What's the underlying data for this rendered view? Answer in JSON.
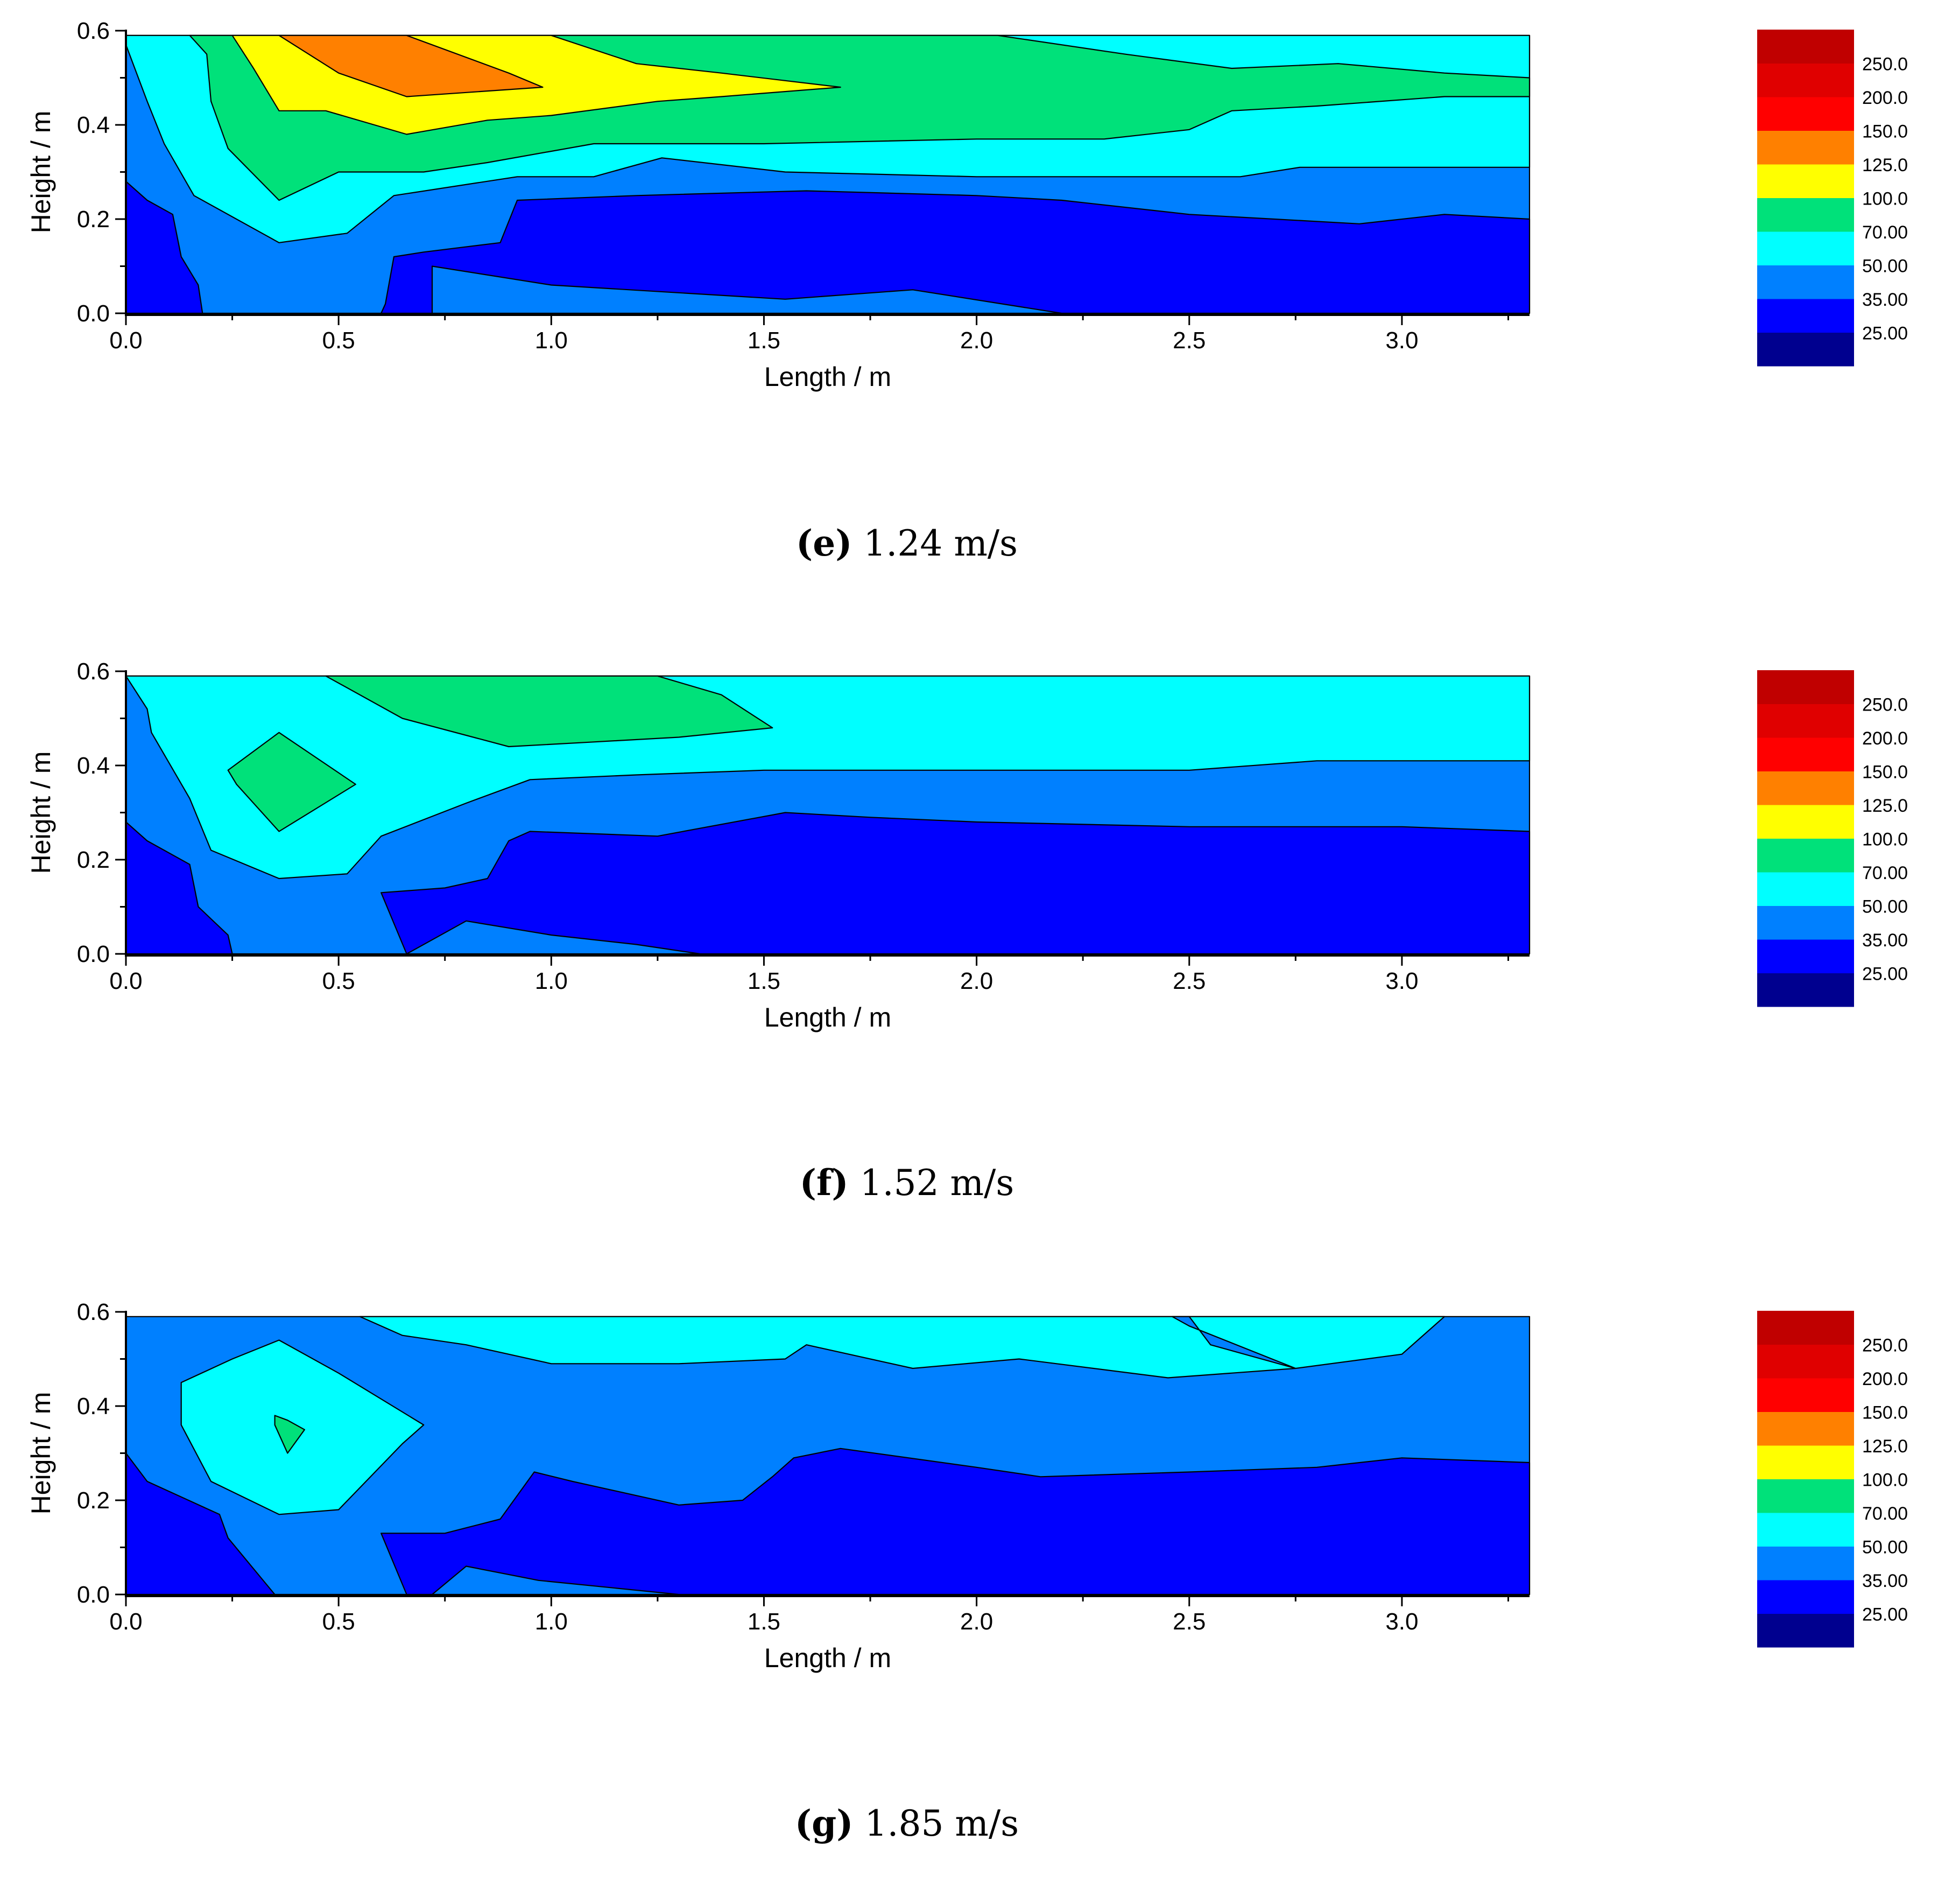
{
  "colors": {
    "legend_levels": [
      "#00008F",
      "#0000FF",
      "#0080FF",
      "#00FFFF",
      "#00E17A",
      "#FFFF00",
      "#FF8000",
      "#FF0000",
      "#E00000",
      "#C00000"
    ],
    "band_colors": [
      "#0000FF",
      "#0080FF",
      "#00FFFF",
      "#00E17A",
      "#FFFF00",
      "#FF8000"
    ]
  },
  "legend": {
    "labels": [
      "250.0",
      "200.0",
      "150.0",
      "125.0",
      "100.0",
      "70.00",
      "50.00",
      "35.00",
      "25.00"
    ]
  },
  "chart_data": [
    {
      "id": "e",
      "type": "contour",
      "xlabel": "Length / m",
      "ylabel": "Height / m",
      "xlim": [
        0.0,
        3.3
      ],
      "ylim": [
        0.0,
        0.6
      ],
      "x_ticks": [
        "0.0",
        "0.5",
        "1.0",
        "1.5",
        "2.0",
        "2.5",
        "3.0"
      ],
      "y_ticks": [
        "0.0",
        "0.2",
        "0.4",
        "0.6"
      ],
      "caption_letter": "e",
      "caption_text": " 1.24 m/s",
      "bands": [
        {
          "color": 1,
          "pts": [
            [
              0,
              0
            ],
            [
              3.3,
              0
            ],
            [
              3.3,
              0.59
            ],
            [
              0,
              0.59
            ]
          ]
        },
        {
          "color": 0,
          "pts": [
            [
              0,
              0.28
            ],
            [
              0.05,
              0.24
            ],
            [
              0.11,
              0.21
            ],
            [
              0.13,
              0.12
            ],
            [
              0.17,
              0.06
            ],
            [
              0.18,
              0
            ],
            [
              0,
              0
            ]
          ]
        },
        {
          "color": 0,
          "pts": [
            [
              0.6,
              0
            ],
            [
              0.61,
              0.02
            ],
            [
              0.63,
              0.12
            ],
            [
              0.7,
              0.13
            ],
            [
              0.88,
              0.15
            ],
            [
              0.92,
              0.24
            ],
            [
              1.2,
              0.25
            ],
            [
              1.6,
              0.26
            ],
            [
              2.0,
              0.25
            ],
            [
              2.2,
              0.24
            ],
            [
              2.5,
              0.21
            ],
            [
              2.7,
              0.2
            ],
            [
              2.9,
              0.19
            ],
            [
              3.1,
              0.21
            ],
            [
              3.3,
              0.2
            ],
            [
              3.3,
              0
            ],
            [
              2.2,
              0
            ],
            [
              1.85,
              0.05
            ],
            [
              1.55,
              0.03
            ],
            [
              1.0,
              0.06
            ],
            [
              0.72,
              0.1
            ],
            [
              0.72,
              0
            ]
          ]
        },
        {
          "color": 2,
          "pts": [
            [
              0,
              0.59
            ],
            [
              0,
              0.57
            ],
            [
              0.05,
              0.45
            ],
            [
              0.09,
              0.36
            ],
            [
              0.16,
              0.25
            ],
            [
              0.36,
              0.15
            ],
            [
              0.52,
              0.17
            ],
            [
              0.63,
              0.25
            ],
            [
              0.92,
              0.29
            ],
            [
              1.1,
              0.29
            ],
            [
              1.26,
              0.33
            ],
            [
              1.55,
              0.3
            ],
            [
              2.0,
              0.29
            ],
            [
              2.44,
              0.29
            ],
            [
              2.62,
              0.29
            ],
            [
              2.76,
              0.31
            ],
            [
              3.3,
              0.31
            ],
            [
              3.3,
              0.59
            ]
          ]
        },
        {
          "color": 3,
          "pts": [
            [
              0.15,
              0.59
            ],
            [
              0.19,
              0.55
            ],
            [
              0.2,
              0.45
            ],
            [
              0.24,
              0.35
            ],
            [
              0.36,
              0.24
            ],
            [
              0.5,
              0.3
            ],
            [
              0.7,
              0.3
            ],
            [
              0.85,
              0.32
            ],
            [
              1.1,
              0.36
            ],
            [
              1.5,
              0.36
            ],
            [
              2.0,
              0.37
            ],
            [
              2.3,
              0.37
            ],
            [
              2.5,
              0.39
            ],
            [
              2.6,
              0.43
            ],
            [
              2.8,
              0.44
            ],
            [
              3.1,
              0.46
            ],
            [
              3.3,
              0.46
            ],
            [
              3.3,
              0.5
            ],
            [
              3.1,
              0.51
            ],
            [
              2.85,
              0.53
            ],
            [
              2.6,
              0.52
            ],
            [
              2.35,
              0.55
            ],
            [
              2.05,
              0.59
            ]
          ]
        },
        {
          "color": 4,
          "pts": [
            [
              0.25,
              0.59
            ],
            [
              0.3,
              0.52
            ],
            [
              0.36,
              0.43
            ],
            [
              0.47,
              0.43
            ],
            [
              0.66,
              0.38
            ],
            [
              0.85,
              0.41
            ],
            [
              1.0,
              0.42
            ],
            [
              1.25,
              0.45
            ],
            [
              1.4,
              0.46
            ],
            [
              1.68,
              0.48
            ],
            [
              1.4,
              0.51
            ],
            [
              1.2,
              0.53
            ],
            [
              1.0,
              0.59
            ]
          ]
        },
        {
          "color": 5,
          "pts": [
            [
              0.36,
              0.59
            ],
            [
              0.5,
              0.51
            ],
            [
              0.66,
              0.46
            ],
            [
              0.98,
              0.48
            ],
            [
              0.9,
              0.51
            ],
            [
              0.66,
              0.59
            ]
          ]
        }
      ]
    },
    {
      "id": "f",
      "type": "contour",
      "xlabel": "Length / m",
      "ylabel": "Height / m",
      "xlim": [
        0.0,
        3.3
      ],
      "ylim": [
        0.0,
        0.6
      ],
      "x_ticks": [
        "0.0",
        "0.5",
        "1.0",
        "1.5",
        "2.0",
        "2.5",
        "3.0"
      ],
      "y_ticks": [
        "0.0",
        "0.2",
        "0.4",
        "0.6"
      ],
      "caption_letter": "f",
      "caption_text": " 1.52 m/s",
      "bands": [
        {
          "color": 1,
          "pts": [
            [
              0,
              0
            ],
            [
              3.3,
              0
            ],
            [
              3.3,
              0.59
            ],
            [
              0,
              0.59
            ]
          ]
        },
        {
          "color": 0,
          "pts": [
            [
              0,
              0.28
            ],
            [
              0.05,
              0.24
            ],
            [
              0.15,
              0.19
            ],
            [
              0.17,
              0.1
            ],
            [
              0.24,
              0.04
            ],
            [
              0.25,
              0
            ],
            [
              0,
              0
            ]
          ]
        },
        {
          "color": 0,
          "pts": [
            [
              0.6,
              0.13
            ],
            [
              0.75,
              0.14
            ],
            [
              0.85,
              0.16
            ],
            [
              0.9,
              0.24
            ],
            [
              0.95,
              0.26
            ],
            [
              1.25,
              0.25
            ],
            [
              1.55,
              0.3
            ],
            [
              1.75,
              0.29
            ],
            [
              2.0,
              0.28
            ],
            [
              2.5,
              0.27
            ],
            [
              2.8,
              0.27
            ],
            [
              3.0,
              0.27
            ],
            [
              3.3,
              0.26
            ],
            [
              3.3,
              0
            ],
            [
              1.35,
              0
            ],
            [
              1.2,
              0.02
            ],
            [
              1.0,
              0.04
            ],
            [
              0.8,
              0.07
            ],
            [
              0.72,
              0.03
            ],
            [
              0.66,
              0
            ]
          ]
        },
        {
          "color": 2,
          "pts": [
            [
              0,
              0.59
            ],
            [
              0.05,
              0.52
            ],
            [
              0.06,
              0.47
            ],
            [
              0.15,
              0.33
            ],
            [
              0.2,
              0.22
            ],
            [
              0.36,
              0.16
            ],
            [
              0.52,
              0.17
            ],
            [
              0.6,
              0.25
            ],
            [
              0.8,
              0.32
            ],
            [
              0.95,
              0.37
            ],
            [
              1.2,
              0.38
            ],
            [
              1.5,
              0.39
            ],
            [
              2.0,
              0.39
            ],
            [
              2.5,
              0.39
            ],
            [
              2.8,
              0.41
            ],
            [
              3.1,
              0.41
            ],
            [
              3.3,
              0.41
            ],
            [
              3.3,
              0.59
            ]
          ]
        },
        {
          "color": 3,
          "pts": [
            [
              0.47,
              0.59
            ],
            [
              0.65,
              0.5
            ],
            [
              0.9,
              0.44
            ],
            [
              1.1,
              0.45
            ],
            [
              1.3,
              0.46
            ],
            [
              1.52,
              0.48
            ],
            [
              1.4,
              0.55
            ],
            [
              1.25,
              0.59
            ]
          ]
        },
        {
          "color": 3,
          "pts": [
            [
              0.24,
              0.39
            ],
            [
              0.36,
              0.47
            ],
            [
              0.54,
              0.36
            ],
            [
              0.36,
              0.26
            ],
            [
              0.26,
              0.36
            ]
          ]
        }
      ]
    },
    {
      "id": "g",
      "type": "contour",
      "xlabel": "Length / m",
      "ylabel": "Height / m",
      "xlim": [
        0.0,
        3.3
      ],
      "ylim": [
        0.0,
        0.6
      ],
      "x_ticks": [
        "0.0",
        "0.5",
        "1.0",
        "1.5",
        "2.0",
        "2.5",
        "3.0"
      ],
      "y_ticks": [
        "0.0",
        "0.2",
        "0.4",
        "0.6"
      ],
      "caption_letter": "g",
      "caption_text": " 1.85 m/s",
      "bands": [
        {
          "color": 1,
          "pts": [
            [
              0,
              0
            ],
            [
              3.3,
              0
            ],
            [
              3.3,
              0.59
            ],
            [
              0,
              0.59
            ]
          ]
        },
        {
          "color": 0,
          "pts": [
            [
              0,
              0.3
            ],
            [
              0.05,
              0.24
            ],
            [
              0.22,
              0.17
            ],
            [
              0.24,
              0.12
            ],
            [
              0.35,
              0
            ],
            [
              0,
              0
            ]
          ]
        },
        {
          "color": 0,
          "pts": [
            [
              0.6,
              0.13
            ],
            [
              0.75,
              0.13
            ],
            [
              0.88,
              0.16
            ],
            [
              0.96,
              0.26
            ],
            [
              1.05,
              0.24
            ],
            [
              1.3,
              0.19
            ],
            [
              1.45,
              0.2
            ],
            [
              1.52,
              0.25
            ],
            [
              1.57,
              0.29
            ],
            [
              1.68,
              0.31
            ],
            [
              2.0,
              0.27
            ],
            [
              2.15,
              0.25
            ],
            [
              2.5,
              0.26
            ],
            [
              2.8,
              0.27
            ],
            [
              3.0,
              0.29
            ],
            [
              3.3,
              0.28
            ],
            [
              3.3,
              0
            ],
            [
              1.3,
              0
            ],
            [
              0.97,
              0.03
            ],
            [
              0.8,
              0.06
            ],
            [
              0.72,
              0
            ],
            [
              0.66,
              0
            ]
          ]
        },
        {
          "color": 2,
          "pts": [
            [
              0.13,
              0.45
            ],
            [
              0.25,
              0.5
            ],
            [
              0.36,
              0.54
            ],
            [
              0.5,
              0.47
            ],
            [
              0.7,
              0.36
            ],
            [
              0.65,
              0.32
            ],
            [
              0.5,
              0.18
            ],
            [
              0.36,
              0.17
            ],
            [
              0.2,
              0.24
            ],
            [
              0.13,
              0.36
            ]
          ]
        },
        {
          "color": 2,
          "pts": [
            [
              0.55,
              0.59
            ],
            [
              0.65,
              0.55
            ],
            [
              0.8,
              0.53
            ],
            [
              1.0,
              0.49
            ],
            [
              1.3,
              0.49
            ],
            [
              1.55,
              0.5
            ],
            [
              1.6,
              0.53
            ],
            [
              1.85,
              0.48
            ],
            [
              2.1,
              0.5
            ],
            [
              2.45,
              0.46
            ],
            [
              2.75,
              0.48
            ],
            [
              3.0,
              0.51
            ],
            [
              3.1,
              0.59
            ]
          ]
        },
        {
          "color": 1,
          "pts": [
            [
              2.46,
              0.59
            ],
            [
              2.5,
              0.57
            ],
            [
              2.75,
              0.48
            ],
            [
              2.55,
              0.53
            ],
            [
              2.5,
              0.59
            ]
          ]
        },
        {
          "color": 3,
          "pts": [
            [
              0.35,
              0.38
            ],
            [
              0.38,
              0.37
            ],
            [
              0.42,
              0.35
            ],
            [
              0.38,
              0.3
            ],
            [
              0.35,
              0.36
            ]
          ]
        }
      ]
    }
  ]
}
